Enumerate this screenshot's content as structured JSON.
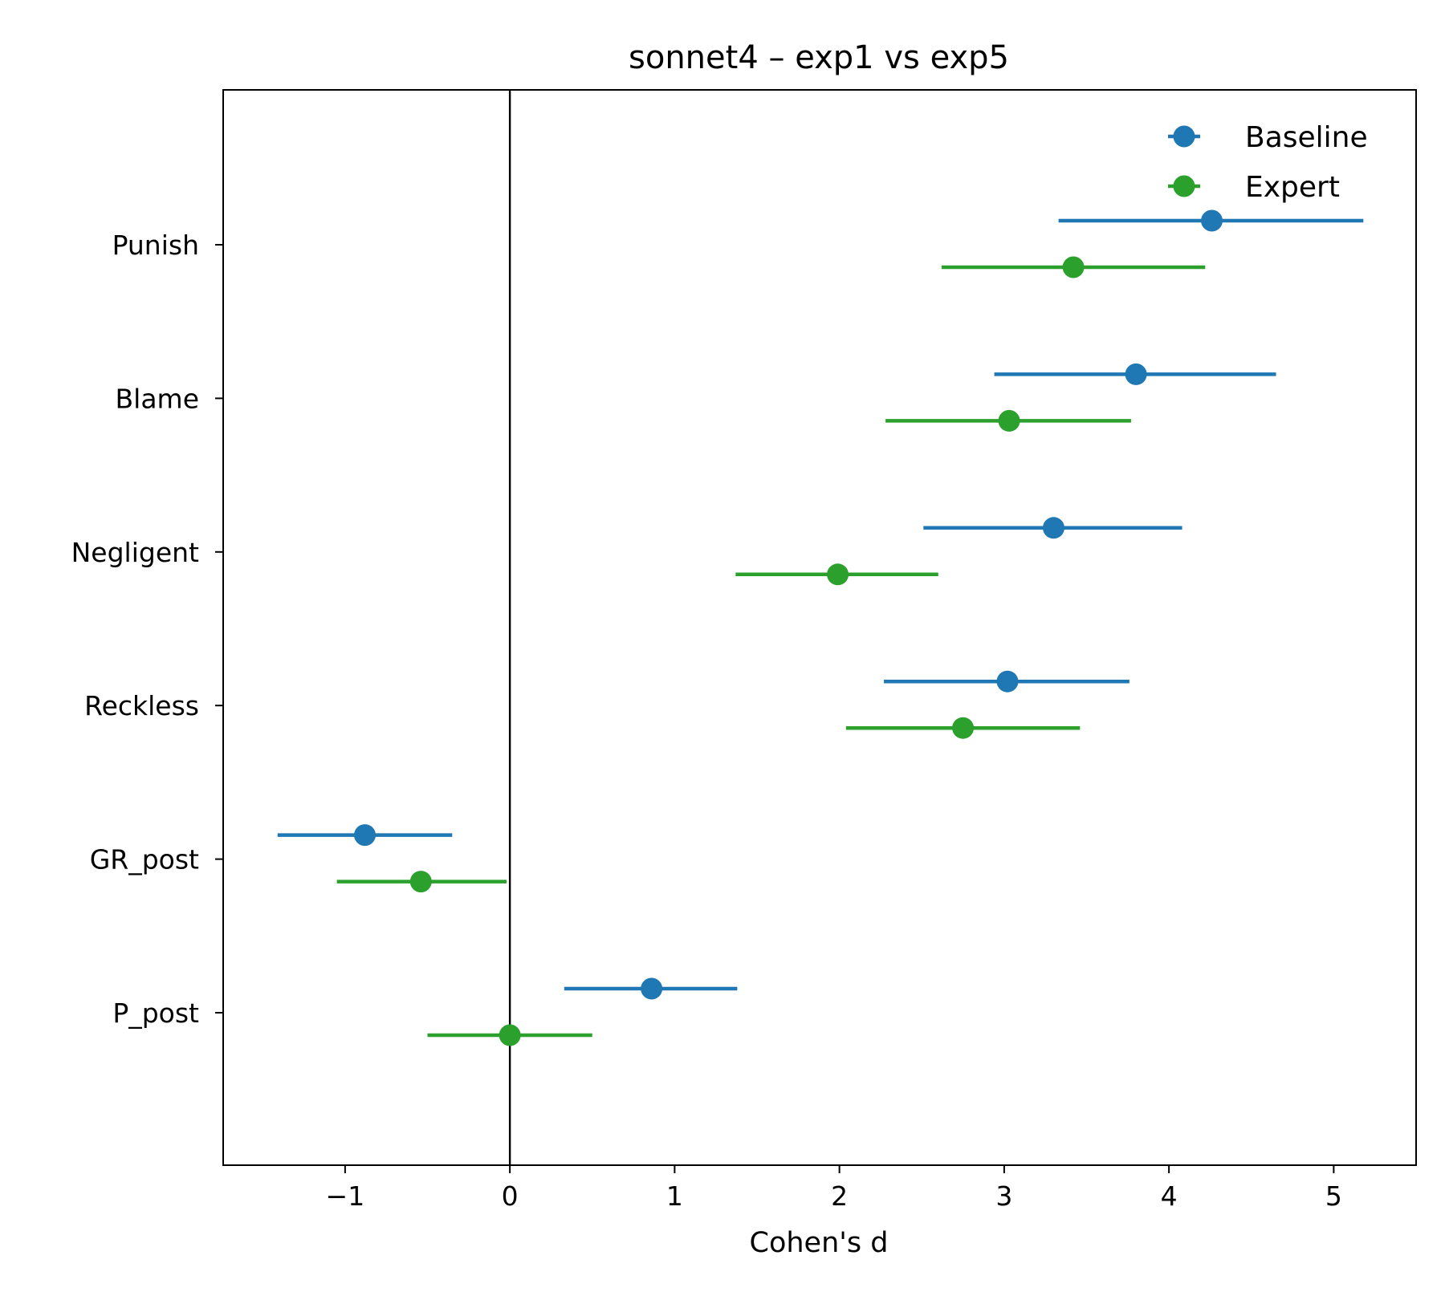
{
  "chart_data": {
    "type": "forest",
    "title": "sonnet4  –  exp1 vs exp5",
    "xlabel": "Cohen's d",
    "ylabel": "",
    "xlim": [
      -1.74,
      5.5
    ],
    "xticks": [
      -1,
      0,
      1,
      2,
      3,
      4,
      5
    ],
    "xtick_labels": [
      "−1",
      "0",
      "1",
      "2",
      "3",
      "4",
      "5"
    ],
    "categories": [
      "Punish",
      "Blame",
      "Negligent",
      "Reckless",
      "GR_post",
      "P_post"
    ],
    "reference_line_x": 0,
    "grid": false,
    "legend_position": "top-right",
    "series": [
      {
        "name": "Baseline",
        "color": "#1f77b4",
        "values": [
          4.26,
          3.8,
          3.3,
          3.02,
          -0.88,
          0.86
        ],
        "ci_low": [
          3.33,
          2.94,
          2.51,
          2.27,
          -1.41,
          0.33
        ],
        "ci_high": [
          5.18,
          4.65,
          4.08,
          3.76,
          -0.35,
          1.38
        ]
      },
      {
        "name": "Expert",
        "color": "#2ca02c",
        "values": [
          3.42,
          3.03,
          1.99,
          2.75,
          -0.54,
          0.0
        ],
        "ci_low": [
          2.62,
          2.28,
          1.37,
          2.04,
          -1.05,
          -0.5
        ],
        "ci_high": [
          4.22,
          3.77,
          2.6,
          3.46,
          -0.02,
          0.5
        ]
      }
    ]
  }
}
